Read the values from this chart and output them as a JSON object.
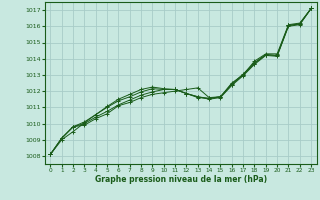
{
  "xlabel": "Graphe pression niveau de la mer (hPa)",
  "bg_color": "#c8e8e0",
  "grid_color": "#a8ccc8",
  "line_color": "#1a5c1a",
  "xlim": [
    -0.5,
    23.5
  ],
  "ylim": [
    1007.5,
    1017.5
  ],
  "yticks": [
    1008,
    1009,
    1010,
    1011,
    1012,
    1013,
    1014,
    1015,
    1016,
    1017
  ],
  "xticks": [
    0,
    1,
    2,
    3,
    4,
    5,
    6,
    7,
    8,
    9,
    10,
    11,
    12,
    13,
    14,
    15,
    16,
    17,
    18,
    19,
    20,
    21,
    22,
    23
  ],
  "series": [
    [
      1008.1,
      1009.1,
      1009.8,
      1009.9,
      1010.3,
      1010.6,
      1011.1,
      1011.3,
      1011.6,
      1011.8,
      1011.9,
      1012.0,
      1012.1,
      1012.2,
      1011.6,
      1011.65,
      1012.5,
      1013.0,
      1013.85,
      1014.3,
      1014.3,
      1016.1,
      1016.2,
      1017.1
    ],
    [
      1008.1,
      1009.1,
      1009.8,
      1010.0,
      1010.4,
      1010.75,
      1011.15,
      1011.45,
      1011.75,
      1011.95,
      1012.1,
      1012.1,
      1011.85,
      1011.6,
      1011.55,
      1011.65,
      1012.45,
      1013.05,
      1013.75,
      1014.25,
      1014.2,
      1016.05,
      1016.15,
      1017.1
    ],
    [
      1008.1,
      1009.1,
      1009.8,
      1010.1,
      1010.55,
      1011.0,
      1011.4,
      1011.65,
      1011.95,
      1012.15,
      1012.1,
      1012.1,
      1011.85,
      1011.65,
      1011.55,
      1011.65,
      1012.4,
      1013.0,
      1013.7,
      1014.25,
      1014.2,
      1016.05,
      1016.15,
      1017.1
    ],
    [
      1008.1,
      1009.0,
      1009.5,
      1010.05,
      1010.55,
      1011.05,
      1011.5,
      1011.8,
      1012.1,
      1012.25,
      1012.15,
      1012.1,
      1011.85,
      1011.65,
      1011.5,
      1011.6,
      1012.35,
      1012.95,
      1013.65,
      1014.2,
      1014.15,
      1016.0,
      1016.1,
      1017.1
    ]
  ]
}
